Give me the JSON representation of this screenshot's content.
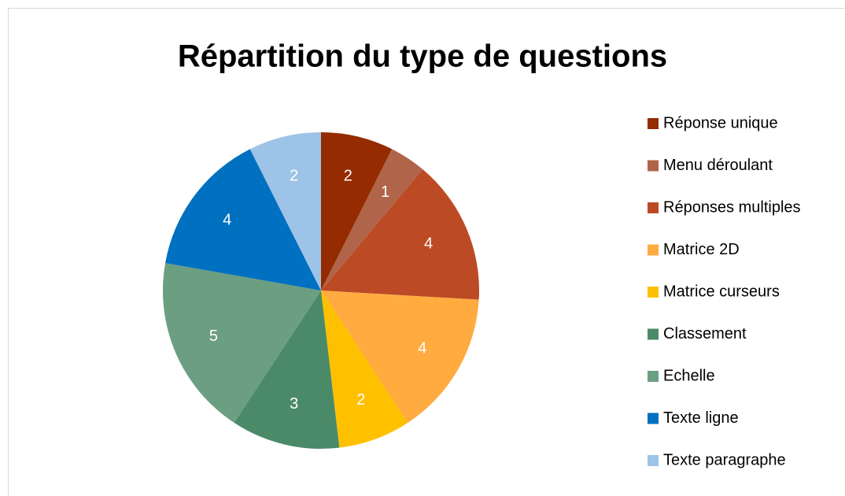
{
  "chart_data": {
    "type": "pie",
    "title": "Répartition du type de questions",
    "categories": [
      "Réponse unique",
      "Menu déroulant",
      "Réponses multiples",
      "Matrice 2D",
      "Matrice curseurs",
      "Classement",
      "Echelle",
      "Texte ligne",
      "Texte paragraphe"
    ],
    "values": [
      2,
      1,
      4,
      4,
      2,
      3,
      5,
      4,
      2
    ],
    "colors": [
      "#952b00",
      "#b0654a",
      "#bc4a25",
      "#ffab40",
      "#ffc000",
      "#4a8a68",
      "#6c9e82",
      "#0070c0",
      "#9dc3e6"
    ],
    "legend": "right"
  }
}
